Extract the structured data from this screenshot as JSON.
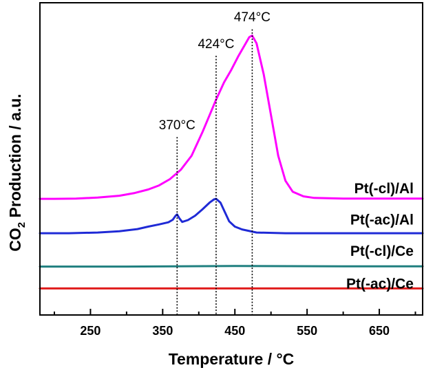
{
  "chart_data": {
    "type": "line",
    "title": "",
    "xlabel": "Temperature / °C",
    "ylabel_main": "CO",
    "ylabel_sub": "2",
    "ylabel_rest": " Production / a.u.",
    "xlim": [
      180,
      710
    ],
    "xticks": [
      250,
      350,
      450,
      550,
      650
    ],
    "ylim": [
      0,
      1
    ],
    "grid": false,
    "colors": {
      "axis": "#000000",
      "pt_cl_al": "#ff00ff",
      "pt_ac_al": "#1f2ad6",
      "pt_cl_ce": "#1f7f7f",
      "pt_ac_ce": "#e01b1b"
    },
    "annotations": [
      {
        "x": 370,
        "label": "370°C",
        "ytop": 0.57,
        "labelY": 0.595
      },
      {
        "x": 424,
        "label": "424°C",
        "ytop": 0.83,
        "labelY": 0.855
      },
      {
        "x": 474,
        "label": "474°C",
        "ytop": 0.915,
        "labelY": 0.94
      }
    ],
    "series": [
      {
        "name": "Pt(-cl)/Al",
        "color_key": "pt_cl_al",
        "labelY": 0.405,
        "x": [
          180,
          200,
          230,
          260,
          290,
          310,
          330,
          345,
          360,
          375,
          390,
          405,
          415,
          424,
          435,
          445,
          455,
          465,
          470,
          474,
          480,
          490,
          500,
          510,
          520,
          530,
          545,
          560,
          600,
          650,
          710
        ],
        "y": [
          0.372,
          0.372,
          0.373,
          0.376,
          0.382,
          0.39,
          0.402,
          0.415,
          0.435,
          0.465,
          0.51,
          0.585,
          0.64,
          0.69,
          0.745,
          0.785,
          0.83,
          0.87,
          0.89,
          0.895,
          0.87,
          0.77,
          0.64,
          0.51,
          0.43,
          0.395,
          0.38,
          0.375,
          0.373,
          0.373,
          0.373
        ]
      },
      {
        "name": "Pt(-ac)/Al",
        "color_key": "pt_ac_al",
        "labelY": 0.305,
        "x": [
          180,
          220,
          260,
          290,
          315,
          330,
          345,
          358,
          364,
          368,
          370,
          373,
          377,
          385,
          395,
          405,
          415,
          421,
          424,
          430,
          436,
          442,
          450,
          460,
          480,
          520,
          560,
          610,
          660,
          710
        ],
        "y": [
          0.262,
          0.262,
          0.264,
          0.268,
          0.275,
          0.283,
          0.29,
          0.297,
          0.305,
          0.318,
          0.322,
          0.31,
          0.298,
          0.304,
          0.318,
          0.338,
          0.36,
          0.37,
          0.372,
          0.36,
          0.33,
          0.3,
          0.283,
          0.274,
          0.264,
          0.262,
          0.262,
          0.262,
          0.262,
          0.262
        ]
      },
      {
        "name": "Pt(-cl)/Ce",
        "color_key": "pt_cl_ce",
        "labelY": 0.205,
        "x": [
          180,
          300,
          450,
          600,
          710
        ],
        "y": [
          0.155,
          0.155,
          0.157,
          0.156,
          0.156
        ]
      },
      {
        "name": "Pt(-ac)/Ce",
        "color_key": "pt_ac_ce",
        "labelY": 0.1,
        "x": [
          180,
          710
        ],
        "y": [
          0.085,
          0.085
        ]
      }
    ]
  }
}
